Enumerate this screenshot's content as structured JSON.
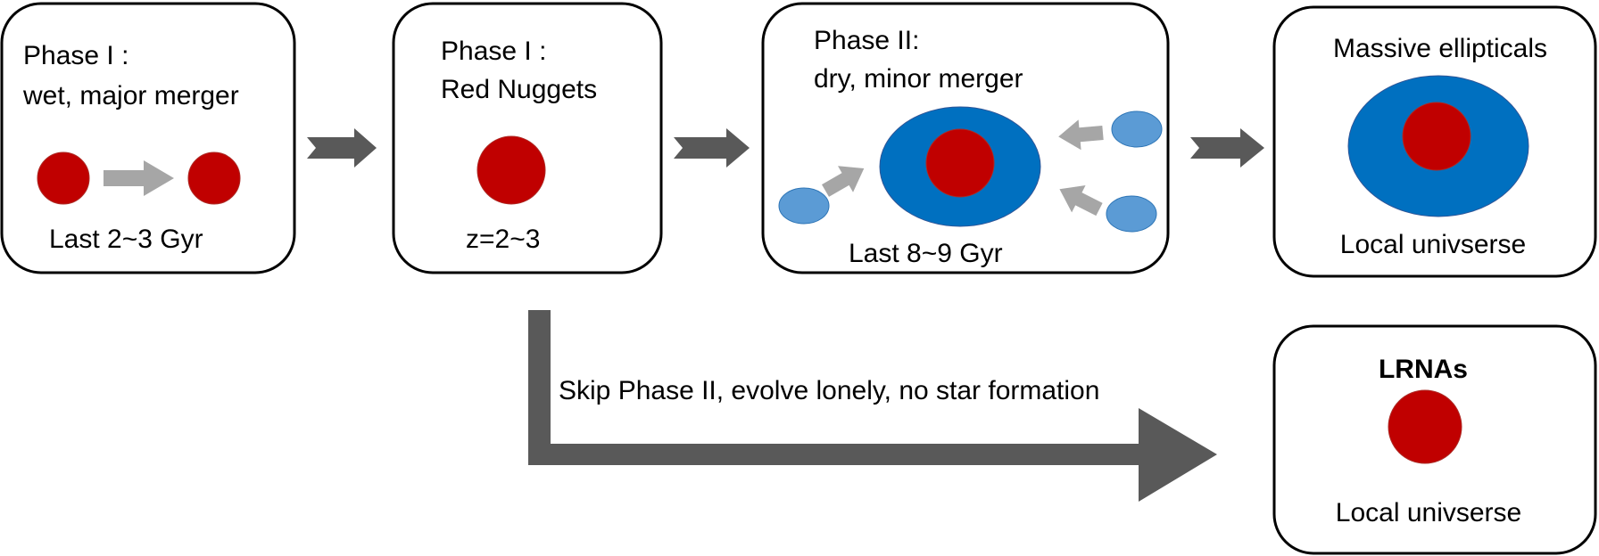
{
  "boxes": {
    "box1": {
      "line1": "Phase I :",
      "line2": "wet, major merger",
      "caption": "Last 2~3 Gyr"
    },
    "box2": {
      "line1": "Phase I :",
      "line2": "Red Nuggets",
      "caption": "z=2~3"
    },
    "box3": {
      "line1": "Phase II:",
      "line2": "dry, minor merger",
      "caption": "Last 8~9 Gyr"
    },
    "box4": {
      "title": "Massive ellipticals",
      "caption": "Local univserse"
    },
    "box5": {
      "title": "LRNAs",
      "caption": "Local univserse"
    }
  },
  "skip_arrow": {
    "label": "Skip Phase II, evolve lonely, no star formation"
  },
  "colors": {
    "core_red": "#c00000",
    "envelope_blue": "#0070c0",
    "satellite_blue": "#5b9bd5",
    "dark_arrow": "#595959",
    "light_arrow": "#a6a6a6"
  }
}
